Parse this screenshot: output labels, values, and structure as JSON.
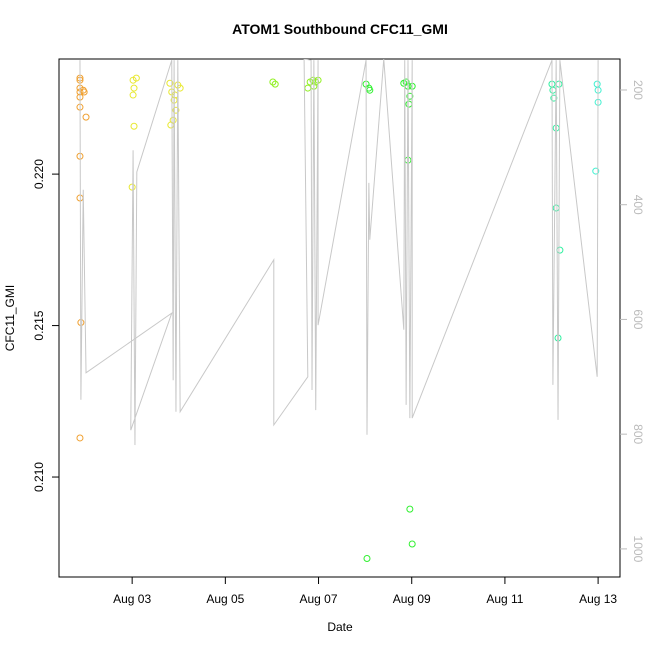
{
  "chart_data": {
    "type": "scatter",
    "title": "ATOM1 Southbound CFC11_GMI",
    "x_label": "Date",
    "y_label": "CFC11_GMI",
    "xlim": [
      1.43,
      13.47
    ],
    "xticks": [
      {
        "value": 3,
        "label": "Aug 03"
      },
      {
        "value": 5,
        "label": "Aug 05"
      },
      {
        "value": 7,
        "label": "Aug 07"
      },
      {
        "value": 9,
        "label": "Aug 09"
      },
      {
        "value": 11,
        "label": "Aug 11"
      },
      {
        "value": 13,
        "label": "Aug 13"
      }
    ],
    "ylim": [
      0.2067,
      0.2238
    ],
    "yticks": [
      {
        "value": 0.21,
        "label": "0.210"
      },
      0.215,
      {
        "value": 0.22,
        "label": "0.220"
      }
    ],
    "y2lim": [
      146,
      1049
    ],
    "y2_reversed": true,
    "y2ticks": [
      200,
      400,
      600,
      800,
      1000
    ],
    "y2_color": "#bbbbbb",
    "series": [
      {
        "color": "#f0a030",
        "x": [
          1.88,
          1.88,
          1.88,
          1.88,
          1.88,
          1.88,
          2.01,
          1.88,
          1.88,
          1.9,
          1.88,
          1.95,
          1.97
        ],
        "values": [
          0.22317,
          0.2231,
          0.22284,
          0.22271,
          0.22254,
          0.22221,
          0.22188,
          0.22059,
          0.21921,
          0.2151,
          0.21129,
          0.22277,
          0.22271
        ]
      },
      {
        "color": "#e8e830",
        "x": [
          3.02,
          3.09,
          3.04,
          3.02,
          3.04,
          3.0,
          3.81,
          3.85,
          3.9,
          3.94,
          3.88,
          3.98,
          4.03,
          3.83,
          3.92
        ],
        "values": [
          0.2231,
          0.22317,
          0.22284,
          0.22261,
          0.22158,
          0.21957,
          0.223,
          0.22271,
          0.22244,
          0.22211,
          0.22178,
          0.22294,
          0.22284,
          0.22162,
          0.22261
        ]
      },
      {
        "color": "#90f020",
        "x": [
          6.02,
          6.07,
          6.77,
          6.82,
          6.88,
          6.94,
          6.99,
          6.9
        ],
        "values": [
          0.22304,
          0.22297,
          0.22284,
          0.22304,
          0.2231,
          0.22304,
          0.2231,
          0.2229
        ]
      },
      {
        "color": "#30f030",
        "x": [
          8.02,
          8.08,
          8.1,
          8.04,
          8.83,
          8.88,
          8.92,
          8.96,
          8.94,
          8.92,
          8.96,
          9.01,
          9.01
        ],
        "values": [
          0.22297,
          0.22284,
          0.22277,
          0.20731,
          0.223,
          0.22304,
          0.2229,
          0.22257,
          0.22231,
          0.22046,
          0.20894,
          0.20779,
          0.2229
        ]
      },
      {
        "color": "#30f0a0",
        "x": [
          12.01,
          12.03,
          12.05,
          12.1,
          12.1,
          12.18,
          12.14,
          12.16
        ],
        "values": [
          0.22297,
          0.22277,
          0.22251,
          0.22152,
          0.21888,
          0.21749,
          0.21459,
          0.22297
        ]
      },
      {
        "color": "#40f0d0",
        "x": [
          12.98,
          13.0,
          13.0,
          12.95
        ],
        "values": [
          0.22297,
          0.22277,
          0.22237,
          0.2201
        ]
      },
      {
        "type": "line",
        "axis": "y2",
        "color": "#c8c8c8",
        "x": [
          1.88,
          1.9,
          1.95,
          2.01,
          3.85,
          2.97,
          3.02,
          3.06,
          3.1,
          3.85,
          3.88,
          3.9,
          3.94,
          3.98,
          4.03,
          6.04,
          6.04,
          6.77,
          6.69,
          6.84,
          6.86,
          6.9,
          6.94,
          6.99,
          6.99,
          8.02,
          8.04,
          8.08,
          8.1,
          8.4,
          8.83,
          8.85,
          8.88,
          8.92,
          8.96,
          9.01,
          9.01,
          12.01,
          12.03,
          12.1,
          12.14,
          12.18,
          12.98,
          13.0
        ],
        "values": [
          148,
          740,
          374,
          693,
          589,
          793,
          305,
          819,
          343,
          148,
          706,
          148,
          761,
          148,
          761,
          496,
          784,
          700,
          146,
          148,
          723,
          148,
          758,
          148,
          610,
          148,
          801,
          362,
          461,
          146,
          618,
          148,
          749,
          148,
          772,
          148,
          772,
          148,
          714,
          148,
          775,
          148,
          700,
          148
        ]
      }
    ]
  }
}
